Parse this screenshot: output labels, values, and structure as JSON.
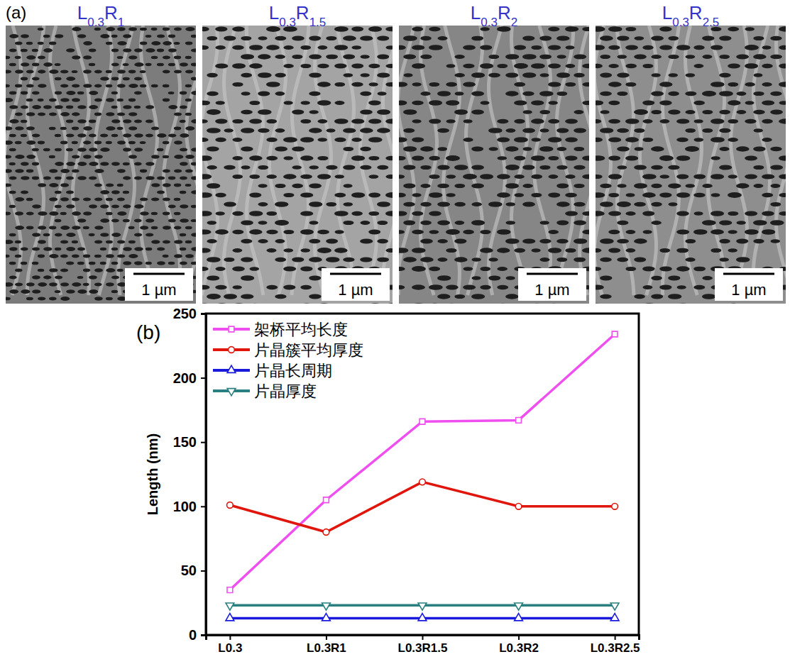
{
  "figure": {
    "panel_label": "(a)",
    "scale_bar": "1 µm",
    "images": [
      {
        "title": [
          {
            "text": "L",
            "sub": "0.3"
          },
          {
            "text": "R",
            "sub": "1"
          }
        ]
      },
      {
        "title": [
          {
            "text": "L",
            "sub": "0.3"
          },
          {
            "text": "R",
            "sub": "1.5"
          }
        ]
      },
      {
        "title": [
          {
            "text": "L",
            "sub": "0.3"
          },
          {
            "text": "R",
            "sub": "2"
          }
        ]
      },
      {
        "title": [
          {
            "text": "L",
            "sub": "0.3"
          },
          {
            "text": "R",
            "sub": "2.5"
          }
        ]
      }
    ]
  },
  "chart_data": {
    "type": "line",
    "panel_label": "(b)",
    "y_label": "Length (nm)",
    "categories": [
      "L0.3",
      "L0.3R1",
      "L0.3R1.5",
      "L0.3R2",
      "L0.3R2.5"
    ],
    "ylim": [
      0,
      250
    ],
    "yticks": [
      0,
      50,
      100,
      150,
      200,
      250
    ],
    "legend": "upper left",
    "series": [
      {
        "name": "架桥平均长度",
        "color": "#f04ff0",
        "marker": "square",
        "values": [
          35,
          105,
          166,
          167,
          234
        ]
      },
      {
        "name": "片晶簇平均厚度",
        "color": "#e0150c",
        "marker": "circle",
        "values": [
          101,
          80,
          119,
          100,
          100
        ]
      },
      {
        "name": "片晶长周期",
        "color": "#1a1adc",
        "marker": "triangle-up",
        "values": [
          13,
          13,
          13,
          13,
          13
        ]
      },
      {
        "name": "片晶厚度",
        "color": "#2a8080",
        "marker": "triangle-down",
        "values": [
          23,
          23,
          23,
          23,
          23
        ]
      }
    ]
  }
}
